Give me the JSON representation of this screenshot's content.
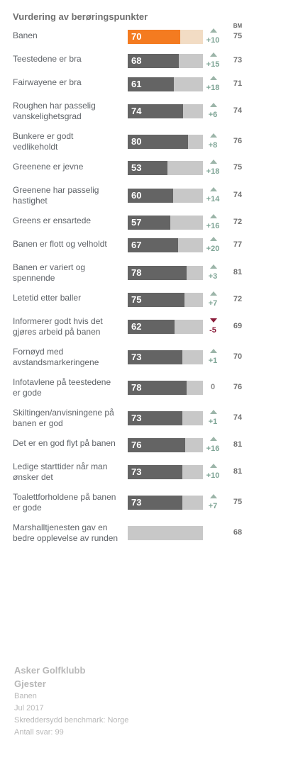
{
  "title": "Vurdering av berøringspunkter",
  "bm_header": "BM",
  "chart_data": {
    "type": "bar",
    "title": "Vurdering av berøringspunkter",
    "xlim": [
      0,
      100
    ],
    "colors": {
      "highlight": "#f47b20",
      "highlight_track": "#f2dcc4",
      "bar": "#646464",
      "track": "#c8c8c8",
      "up": "#9cb5a9",
      "down": "#8b1c3a"
    },
    "rows": [
      {
        "label": "Banen",
        "value": 70,
        "delta": "+10",
        "direction": "up",
        "bm": "75",
        "highlight": true
      },
      {
        "label": "Teestedene er bra",
        "value": 68,
        "delta": "+15",
        "direction": "up",
        "bm": "73"
      },
      {
        "label": "Fairwayene er bra",
        "value": 61,
        "delta": "+18",
        "direction": "up",
        "bm": "71"
      },
      {
        "label": "Roughen har passelig vanskelighetsgrad",
        "value": 74,
        "delta": "+6",
        "direction": "up",
        "bm": "74"
      },
      {
        "label": "Bunkere er godt vedlikeholdt",
        "value": 80,
        "delta": "+8",
        "direction": "up",
        "bm": "76"
      },
      {
        "label": "Greenene er jevne",
        "value": 53,
        "delta": "+18",
        "direction": "up",
        "bm": "75"
      },
      {
        "label": "Greenene har passelig hastighet",
        "value": 60,
        "delta": "+14",
        "direction": "up",
        "bm": "74"
      },
      {
        "label": "Greens er ensartede",
        "value": 57,
        "delta": "+16",
        "direction": "up",
        "bm": "72"
      },
      {
        "label": "Banen er flott og velholdt",
        "value": 67,
        "delta": "+20",
        "direction": "up",
        "bm": "77"
      },
      {
        "label": "Banen er variert og spennende",
        "value": 78,
        "delta": "+3",
        "direction": "up",
        "bm": "81"
      },
      {
        "label": "Letetid etter baller",
        "value": 75,
        "delta": "+7",
        "direction": "up",
        "bm": "72"
      },
      {
        "label": "Informerer godt hvis det gjøres arbeid på banen",
        "value": 62,
        "delta": "-5",
        "direction": "down",
        "bm": "69"
      },
      {
        "label": "Fornøyd med avstandsmarkeringene",
        "value": 73,
        "delta": "+1",
        "direction": "up",
        "bm": "70"
      },
      {
        "label": "Infotavlene på teestedene er gode",
        "value": 78,
        "delta": "0",
        "direction": "none",
        "bm": "76"
      },
      {
        "label": "Skiltingen/anvisningene på banen er god",
        "value": 73,
        "delta": "+1",
        "direction": "up",
        "bm": "74"
      },
      {
        "label": "Det er en god flyt på banen",
        "value": 76,
        "delta": "+16",
        "direction": "up",
        "bm": "81"
      },
      {
        "label": "Ledige starttider når man ønsker det",
        "value": 73,
        "delta": "+10",
        "direction": "up",
        "bm": "81"
      },
      {
        "label": "Toalettforholdene på banen er gode",
        "value": 73,
        "delta": "+7",
        "direction": "up",
        "bm": "75"
      },
      {
        "label": "Marshalltjenesten gav en bedre opplevelse av runden",
        "value": null,
        "delta": "",
        "direction": "none",
        "bm": "68"
      }
    ]
  },
  "footer": {
    "club": "Asker Golfklubb",
    "group": "Gjester",
    "section": "Banen",
    "period": "Jul 2017",
    "benchmark": "Skreddersydd benchmark: Norge",
    "responses": "Antall svar: 99"
  }
}
